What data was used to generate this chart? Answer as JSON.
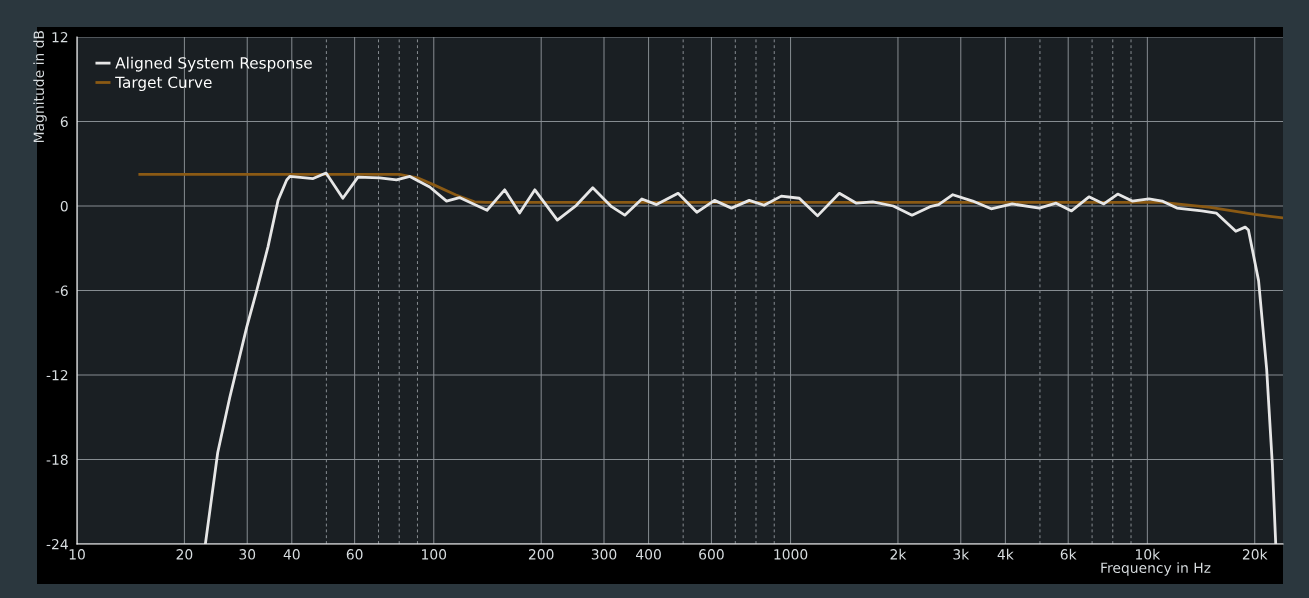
{
  "chart_data": {
    "type": "line",
    "xlabel": "Frequency in Hz",
    "ylabel": "Magnitude in dB",
    "log": "x",
    "grid": true,
    "legend": "top left",
    "line_style": "solid",
    "marker": "none",
    "xlim": [
      10,
      24000
    ],
    "ylim": [
      -24,
      12
    ],
    "xticks": [
      10,
      20,
      30,
      40,
      {
        "value": 50,
        "label": null
      },
      60,
      {
        "value": 70,
        "label": null
      },
      {
        "value": 80,
        "label": null
      },
      {
        "value": 90,
        "label": null
      },
      100,
      200,
      300,
      400,
      {
        "value": 500,
        "label": null
      },
      600,
      {
        "value": 700,
        "label": null
      },
      {
        "value": 800,
        "label": null
      },
      {
        "value": 900,
        "label": null
      },
      1000,
      {
        "value": 2000,
        "label": "2k"
      },
      {
        "value": 3000,
        "label": "3k"
      },
      {
        "value": 4000,
        "label": "4k"
      },
      {
        "value": 5000,
        "label": null
      },
      {
        "value": 6000,
        "label": "6k"
      },
      {
        "value": 7000,
        "label": null
      },
      {
        "value": 8000,
        "label": null
      },
      {
        "value": 9000,
        "label": null
      },
      {
        "value": 10000,
        "label": "10k"
      },
      {
        "value": 20000,
        "label": "20k"
      }
    ],
    "yticks": [
      -24,
      -18,
      -12,
      -6,
      0,
      6,
      12
    ],
    "series": [
      {
        "name": "Aligned System Response",
        "color": "#e6e6e6",
        "x": [
          22.9,
          24.8,
          26.8,
          29.9,
          31.9,
          34.3,
          36.6,
          38.7,
          39.5,
          45.9,
          49.9,
          55.6,
          61.3,
          70.5,
          78.6,
          85.7,
          97.4,
          108.6,
          118,
          141,
          158,
          174,
          192,
          222,
          251,
          279,
          315,
          343,
          383,
          421,
          484,
          546,
          612,
          683,
          766,
          843,
          942,
          1058,
          1190,
          1370,
          1530,
          1700,
          1940,
          2190,
          2460,
          2600,
          2850,
          3240,
          3650,
          4180,
          4980,
          5550,
          6130,
          6860,
          7550,
          8260,
          9070,
          10100,
          11000,
          12100,
          14200,
          15600,
          17700,
          18800,
          19200,
          20500,
          21600,
          22400,
          22900
        ],
        "values": [
          -24,
          -17.5,
          -13.6,
          -8.6,
          -6.0,
          -2.9,
          0.4,
          1.85,
          2.1,
          1.95,
          2.35,
          0.55,
          2.05,
          2.0,
          1.85,
          2.1,
          1.35,
          0.35,
          0.6,
          -0.3,
          1.15,
          -0.5,
          1.15,
          -1.0,
          0.05,
          1.3,
          -0.05,
          -0.65,
          0.5,
          0.1,
          0.9,
          -0.45,
          0.4,
          -0.15,
          0.4,
          0.05,
          0.7,
          0.55,
          -0.7,
          0.9,
          0.2,
          0.3,
          0,
          -0.65,
          -0.05,
          0.1,
          0.8,
          0.35,
          -0.2,
          0.15,
          -0.15,
          0.2,
          -0.35,
          0.65,
          0.15,
          0.85,
          0.35,
          0.5,
          0.35,
          -0.15,
          -0.35,
          -0.5,
          -1.8,
          -1.5,
          -1.7,
          -5.3,
          -11.6,
          -18.3,
          -24
        ]
      },
      {
        "name": "Target Curve",
        "color": "#8b5a14",
        "x": [
          15,
          80,
          90,
          100,
          115,
          130,
          140,
          11000,
          15000,
          20000,
          24000
        ],
        "values": [
          2.25,
          2.25,
          2.0,
          1.5,
          0.8,
          0.3,
          0.25,
          0.25,
          -0.1,
          -0.6,
          -0.85
        ]
      }
    ]
  }
}
